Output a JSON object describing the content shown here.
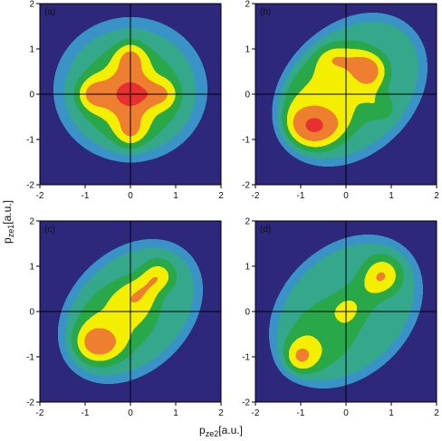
{
  "chart_data": [
    {
      "type": "contour",
      "label": "(a)",
      "xlim": [
        -2,
        2
      ],
      "ylim": [
        -2,
        2
      ],
      "xticks": [
        -2,
        -1,
        0,
        1,
        2
      ],
      "yticks": [
        -2,
        -1,
        0,
        1,
        2
      ]
    },
    {
      "type": "contour",
      "label": "(b)",
      "xlim": [
        -2,
        2
      ],
      "ylim": [
        -2,
        2
      ],
      "xticks": [
        -2,
        -1,
        0,
        1,
        2
      ],
      "yticks": [
        -2,
        -1,
        0,
        1,
        2
      ]
    },
    {
      "type": "contour",
      "label": "(c)",
      "xlim": [
        -2,
        2
      ],
      "ylim": [
        -2,
        2
      ],
      "xticks": [
        -2,
        -1,
        0,
        1,
        2
      ],
      "yticks": [
        -2,
        -1,
        0,
        1,
        2
      ]
    },
    {
      "type": "contour",
      "label": "(d)",
      "xlim": [
        -2,
        2
      ],
      "ylim": [
        -2,
        2
      ],
      "xticks": [
        -2,
        -1,
        0,
        1,
        2
      ],
      "yticks": [
        -2,
        -1,
        0,
        1,
        2
      ]
    }
  ],
  "axis_labels": {
    "x": [
      "p",
      "ze2",
      "[a.u.]"
    ],
    "y": [
      "p",
      "ze1",
      "[a.u.]"
    ]
  }
}
